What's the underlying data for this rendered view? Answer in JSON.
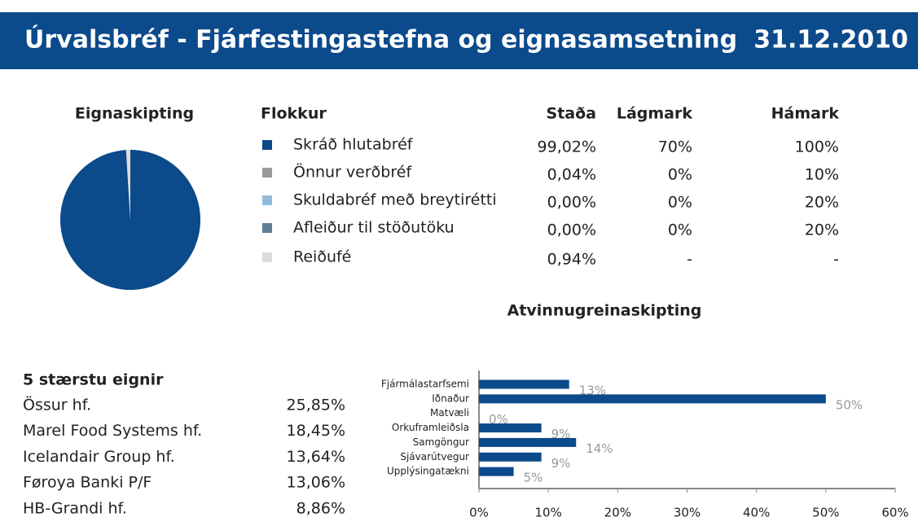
{
  "header": {
    "title": "Úrvalsbréf - Fjárfestingastefna og eignasamsetning",
    "date": "31.12.2010"
  },
  "chart_data": [
    {
      "type": "pie",
      "title": "Eignaskipting",
      "categories": [
        "Skráð hlutabréf",
        "Önnur verðbréf",
        "Skuldabréf með breytirétti",
        "Afleiður til stöðutöku",
        "Reiðufé"
      ],
      "values": [
        99.02,
        0.04,
        0,
        0,
        0.94
      ],
      "value_labels": [
        "99,02%",
        "0,04%",
        "0,00%",
        "0,00%",
        "0,94%"
      ],
      "colors": [
        "#0b4a8b",
        "#9a9a9a",
        "#8fbcdc",
        "#5f7f99",
        "#dcdcdc"
      ]
    },
    {
      "type": "barh",
      "title": "Atvinnugreinaskipting",
      "categories": [
        "Fjármálastarfsemi",
        "Iðnaður",
        "Matvæli",
        "Orkuframleiðsla",
        "Samgöngur",
        "Sjávarútvegur",
        "Upplýsingatækni"
      ],
      "values": [
        13,
        50,
        0,
        9,
        14,
        9,
        5
      ],
      "value_labels": [
        "13%",
        "50%",
        "0%",
        "9%",
        "14%",
        "9%",
        "5%"
      ],
      "color": "#0b4a8b",
      "xlim": [
        0,
        60
      ],
      "xticks": [
        {
          "value": 0,
          "label": "0%"
        },
        {
          "value": 10,
          "label": "10%"
        },
        {
          "value": 20,
          "label": "20%"
        },
        {
          "value": 30,
          "label": "30%"
        },
        {
          "value": 40,
          "label": "40%"
        },
        {
          "value": 50,
          "label": "50%"
        },
        {
          "value": 60,
          "label": "60%"
        }
      ]
    }
  ],
  "table": {
    "headers": [
      "Flokkur",
      "Staða",
      "Lágmark",
      "Hámark"
    ],
    "limits": [
      [
        "70%",
        "100%"
      ],
      [
        "0%",
        "10%"
      ],
      [
        "0%",
        "20%"
      ],
      [
        "0%",
        "20%"
      ],
      [
        "-",
        "-"
      ]
    ]
  },
  "holdings": {
    "title": "5 stærstu eignir",
    "rows": [
      [
        "Össur hf.",
        "25,85%"
      ],
      [
        "Marel Food Systems hf.",
        "18,45%"
      ],
      [
        "Icelandair Group hf.",
        "13,64%"
      ],
      [
        "Føroya Banki P/F",
        "13,06%"
      ],
      [
        "HB-Grandi hf.",
        "8,86%"
      ]
    ]
  }
}
